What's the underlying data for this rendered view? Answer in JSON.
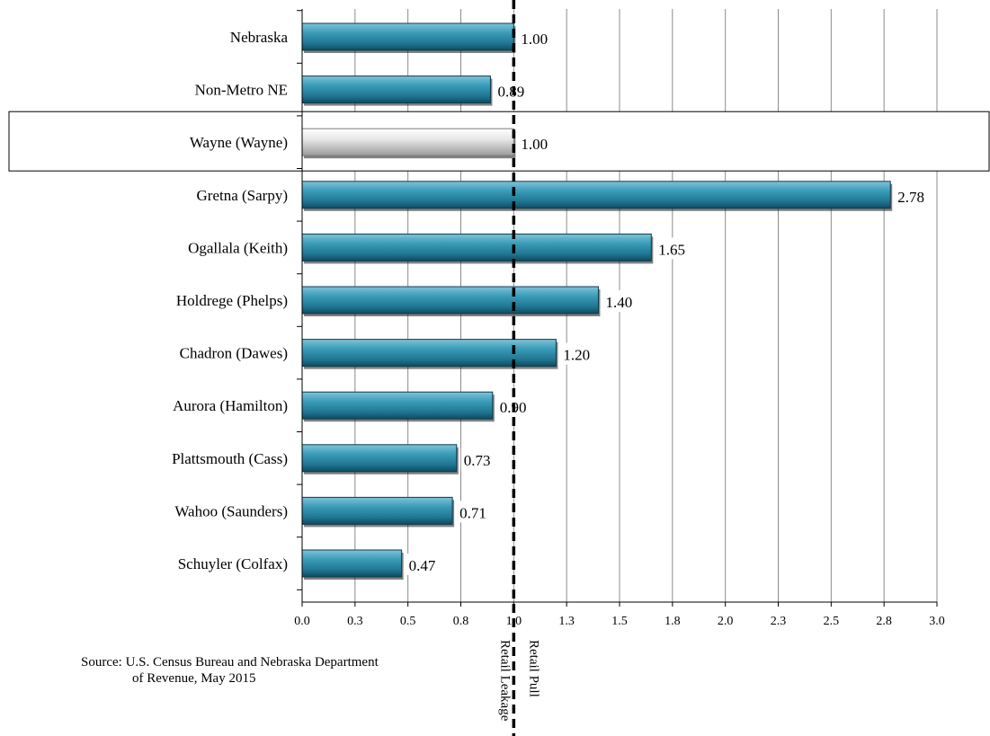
{
  "chart_data": {
    "type": "bar",
    "orientation": "horizontal",
    "categories": [
      "Nebraska",
      "Non-Metro NE",
      "Wayne (Wayne)",
      "Gretna (Sarpy)",
      "Ogallala (Keith)",
      "Holdrege (Phelps)",
      "Chadron (Dawes)",
      "Aurora (Hamilton)",
      "Plattsmouth (Cass)",
      "Wahoo (Saunders)",
      "Schuyler (Colfax)"
    ],
    "values": [
      1.0,
      0.89,
      1.0,
      2.78,
      1.65,
      1.4,
      1.2,
      0.9,
      0.73,
      0.71,
      0.47
    ],
    "value_labels": [
      "1.00",
      "0.89",
      "1.00",
      "2.78",
      "1.65",
      "1.40",
      "1.20",
      "0.90",
      "0.73",
      "0.71",
      "0.47"
    ],
    "highlighted_category": "Wayne (Wayne)",
    "xlim": [
      0,
      3.0
    ],
    "x_ticks": [
      "0.0",
      "0.3",
      "0.5",
      "0.8",
      "1.0",
      "1.3",
      "1.5",
      "1.8",
      "2.0",
      "2.3",
      "2.5",
      "2.8",
      "3.0"
    ],
    "reference_line": {
      "value": 1.0,
      "style": "dashed",
      "left_label": "Retail Leakage",
      "right_label": "Retail Pull"
    },
    "grid": "vertical",
    "colors": {
      "bar": "#2e8aa6",
      "highlight_bar": "#d8d8d8",
      "reference_line": "#000000"
    }
  },
  "source_note": {
    "line1": "Source: U.S. Census Bureau and Nebraska Department",
    "line2": "of Revenue, May 2015"
  }
}
